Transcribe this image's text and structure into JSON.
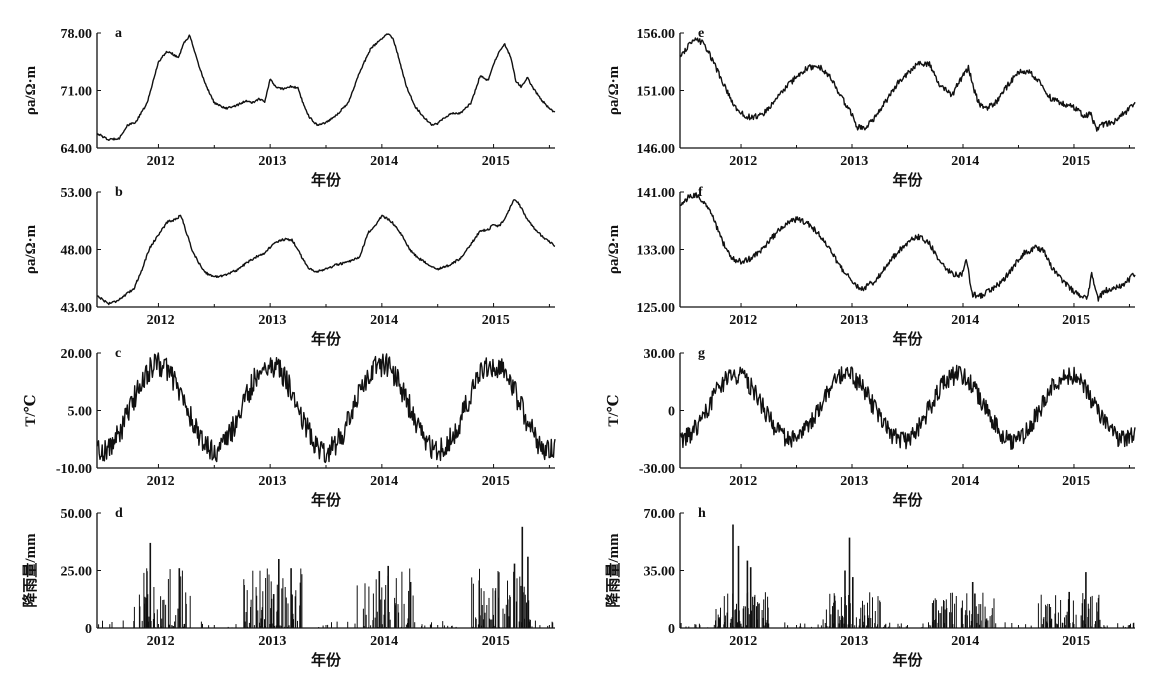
{
  "chart_data": [
    {
      "id": "a",
      "panel_label": "a",
      "type": "line",
      "ylabel": "ρa/Ω·m",
      "xlabel": "年份",
      "ylim": [
        64.0,
        78.0
      ],
      "yticks": [
        "64.00",
        "71.00",
        "78.00"
      ],
      "xticks": [
        "2012",
        "2013",
        "2014",
        "2015"
      ],
      "xlim": [
        2011.45,
        2015.55
      ],
      "noise": 0.12,
      "series": [
        {
          "name": "a",
          "x": [
            2011.45,
            2011.55,
            2011.65,
            2011.72,
            2011.8,
            2011.9,
            2012.0,
            2012.08,
            2012.12,
            2012.18,
            2012.22,
            2012.28,
            2012.35,
            2012.42,
            2012.5,
            2012.6,
            2012.7,
            2012.78,
            2012.85,
            2012.9,
            2012.95,
            2013.0,
            2013.05,
            2013.12,
            2013.18,
            2013.25,
            2013.3,
            2013.35,
            2013.42,
            2013.5,
            2013.6,
            2013.7,
            2013.8,
            2013.9,
            2014.0,
            2014.05,
            2014.1,
            2014.15,
            2014.22,
            2014.3,
            2014.38,
            2014.45,
            2014.5,
            2014.55,
            2014.62,
            2014.7,
            2014.8,
            2014.88,
            2014.95,
            2015.0,
            2015.05,
            2015.1,
            2015.15,
            2015.2,
            2015.25,
            2015.3,
            2015.35,
            2015.42,
            2015.5,
            2015.55
          ],
          "y": [
            65.8,
            65.0,
            65.2,
            66.7,
            67.2,
            69.5,
            74.5,
            75.8,
            75.5,
            75.0,
            76.6,
            77.7,
            74.5,
            71.8,
            69.5,
            68.8,
            69.2,
            69.7,
            69.5,
            70.0,
            69.6,
            72.4,
            71.4,
            71.2,
            71.5,
            71.3,
            69.2,
            67.8,
            66.8,
            67.1,
            68.1,
            69.5,
            73.2,
            76.1,
            77.3,
            77.9,
            77.4,
            75.0,
            71.5,
            69.0,
            67.7,
            66.8,
            67.0,
            67.6,
            68.2,
            68.2,
            69.5,
            72.8,
            72.2,
            74.2,
            75.7,
            76.6,
            75.2,
            72.2,
            71.4,
            72.6,
            71.4,
            70.0,
            68.8,
            68.3
          ]
        }
      ]
    },
    {
      "id": "b",
      "panel_label": "b",
      "type": "line",
      "ylabel": "ρa/Ω·m",
      "xlabel": "年份",
      "ylim": [
        43.0,
        53.0
      ],
      "yticks": [
        "43.00",
        "48.00",
        "53.00"
      ],
      "xticks": [
        "2012",
        "2013",
        "2014",
        "2015"
      ],
      "xlim": [
        2011.45,
        2015.55
      ],
      "noise": 0.1,
      "series": [
        {
          "name": "b",
          "x": [
            2011.45,
            2011.55,
            2011.62,
            2011.7,
            2011.78,
            2011.85,
            2011.92,
            2012.0,
            2012.08,
            2012.15,
            2012.2,
            2012.25,
            2012.3,
            2012.35,
            2012.42,
            2012.5,
            2012.6,
            2012.7,
            2012.8,
            2012.9,
            2012.95,
            2013.0,
            2013.05,
            2013.1,
            2013.15,
            2013.2,
            2013.28,
            2013.35,
            2013.42,
            2013.5,
            2013.6,
            2013.7,
            2013.8,
            2013.88,
            2013.95,
            2014.0,
            2014.05,
            2014.1,
            2014.18,
            2014.25,
            2014.32,
            2014.4,
            2014.5,
            2014.6,
            2014.7,
            2014.8,
            2014.88,
            2014.95,
            2015.0,
            2015.05,
            2015.12,
            2015.18,
            2015.22,
            2015.28,
            2015.35,
            2015.45,
            2015.55
          ],
          "y": [
            44.0,
            43.3,
            43.5,
            44.0,
            44.6,
            46.2,
            48.1,
            49.3,
            50.4,
            50.6,
            51.0,
            49.5,
            48.0,
            47.0,
            46.0,
            45.6,
            45.8,
            46.2,
            46.9,
            47.5,
            47.7,
            48.2,
            48.6,
            48.8,
            48.9,
            48.8,
            47.4,
            46.3,
            46.1,
            46.3,
            46.7,
            46.9,
            47.3,
            49.5,
            50.2,
            50.9,
            50.7,
            50.3,
            49.2,
            48.0,
            47.3,
            46.8,
            46.3,
            46.6,
            47.2,
            48.5,
            49.6,
            49.7,
            50.2,
            50.0,
            51.0,
            52.4,
            52.1,
            51.0,
            50.0,
            49.0,
            48.3
          ]
        }
      ]
    },
    {
      "id": "c",
      "panel_label": "c",
      "type": "line",
      "ylabel": "T/℃",
      "xlabel": "年份",
      "ylim": [
        -10.0,
        20.0
      ],
      "yticks": [
        "-10.00",
        "5.00",
        "20.00"
      ],
      "xticks": [
        "2012",
        "2013",
        "2014",
        "2015"
      ],
      "xlim": [
        2011.45,
        2015.55
      ],
      "noise": 3.2,
      "seasonal": {
        "mean": 5.8,
        "amp": 11.2,
        "peak": 2012.0,
        "period": 1.0
      },
      "series": [
        {
          "name": "c",
          "x": [],
          "y": []
        }
      ]
    },
    {
      "id": "d",
      "panel_label": "d",
      "type": "bar",
      "ylabel": "降雨量/mm",
      "xlabel": "年份",
      "ylim": [
        0,
        50.0
      ],
      "yticks": [
        "0",
        "25.00",
        "50.00"
      ],
      "xticks": [
        "2012",
        "2013",
        "2014",
        "2015"
      ],
      "xlim": [
        2011.45,
        2015.55
      ],
      "rain": {
        "seasons": [
          [
            2011.78,
            2012.28
          ],
          [
            2012.75,
            2013.28
          ],
          [
            2013.75,
            2014.28
          ],
          [
            2014.8,
            2015.32
          ]
        ],
        "peaks": [
          [
            2011.92,
            37
          ],
          [
            2012.18,
            26
          ],
          [
            2013.07,
            30
          ],
          [
            2013.18,
            26
          ],
          [
            2014.05,
            27
          ],
          [
            2014.25,
            20
          ],
          [
            2015.25,
            44
          ],
          [
            2015.18,
            28
          ],
          [
            2015.3,
            31
          ]
        ],
        "typical": 10,
        "scale": 26
      },
      "series": [
        {
          "name": "rain",
          "x": [],
          "y": []
        }
      ]
    },
    {
      "id": "e",
      "panel_label": "e",
      "type": "line",
      "ylabel": "ρa/Ω·m",
      "xlabel": "年份",
      "ylim": [
        146.0,
        156.0
      ],
      "yticks": [
        "146.00",
        "151.00",
        "156.00"
      ],
      "xticks": [
        "2012",
        "2013",
        "2014",
        "2015"
      ],
      "xlim": [
        2011.45,
        2015.55
      ],
      "noise": 0.25,
      "series": [
        {
          "name": "e",
          "x": [
            2011.45,
            2011.52,
            2011.6,
            2011.67,
            2011.75,
            2011.82,
            2011.9,
            2011.95,
            2012.0,
            2012.1,
            2012.2,
            2012.3,
            2012.4,
            2012.5,
            2012.6,
            2012.7,
            2012.8,
            2012.9,
            2013.0,
            2013.05,
            2013.12,
            2013.2,
            2013.3,
            2013.4,
            2013.5,
            2013.6,
            2013.7,
            2013.78,
            2013.85,
            2013.9,
            2013.95,
            2014.0,
            2014.05,
            2014.1,
            2014.15,
            2014.2,
            2014.3,
            2014.4,
            2014.5,
            2014.6,
            2014.7,
            2014.8,
            2014.9,
            2015.0,
            2015.1,
            2015.15,
            2015.2,
            2015.25,
            2015.35,
            2015.45,
            2015.55
          ],
          "y": [
            154.0,
            154.8,
            155.5,
            155.0,
            153.5,
            152.0,
            150.4,
            149.5,
            149.0,
            148.6,
            149.0,
            150.0,
            151.2,
            152.2,
            153.0,
            153.1,
            152.2,
            150.5,
            148.9,
            147.8,
            147.8,
            148.6,
            150.0,
            151.5,
            152.5,
            153.4,
            153.3,
            151.6,
            151.0,
            150.5,
            151.5,
            152.3,
            153.0,
            151.0,
            149.8,
            149.4,
            150.0,
            151.4,
            152.6,
            152.6,
            151.6,
            150.2,
            149.9,
            149.5,
            148.8,
            149.0,
            147.6,
            148.0,
            148.2,
            149.0,
            149.8
          ]
        }
      ]
    },
    {
      "id": "f",
      "panel_label": "f",
      "type": "line",
      "ylabel": "ρa/Ω·m",
      "xlabel": "年份",
      "ylim": [
        125.0,
        141.0
      ],
      "yticks": [
        "125.00",
        "133.00",
        "141.00"
      ],
      "xticks": [
        "2012",
        "2013",
        "2014",
        "2015"
      ],
      "xlim": [
        2011.45,
        2015.55
      ],
      "noise": 0.4,
      "series": [
        {
          "name": "f",
          "x": [
            2011.45,
            2011.52,
            2011.6,
            2011.67,
            2011.75,
            2011.82,
            2011.9,
            2011.95,
            2012.0,
            2012.1,
            2012.2,
            2012.3,
            2012.4,
            2012.5,
            2012.6,
            2012.7,
            2012.8,
            2012.9,
            2013.0,
            2013.05,
            2013.1,
            2013.2,
            2013.3,
            2013.4,
            2013.5,
            2013.6,
            2013.7,
            2013.8,
            2013.88,
            2013.93,
            2013.97,
            2014.0,
            2014.03,
            2014.08,
            2014.15,
            2014.25,
            2014.35,
            2014.45,
            2014.55,
            2014.65,
            2014.72,
            2014.8,
            2014.9,
            2015.0,
            2015.08,
            2015.12,
            2015.16,
            2015.22,
            2015.28,
            2015.35,
            2015.45,
            2015.55
          ],
          "y": [
            139.0,
            140.2,
            140.5,
            139.6,
            137.5,
            134.5,
            132.0,
            131.5,
            131.3,
            131.8,
            133.2,
            135.0,
            136.5,
            137.2,
            136.6,
            135.2,
            133.0,
            130.5,
            128.5,
            127.8,
            127.6,
            128.5,
            130.5,
            132.5,
            134.0,
            134.8,
            133.8,
            131.0,
            130.0,
            129.5,
            129.4,
            129.8,
            132.0,
            126.8,
            126.5,
            127.3,
            128.5,
            130.5,
            132.5,
            133.2,
            133.0,
            130.5,
            128.5,
            127.2,
            126.4,
            126.5,
            129.5,
            126.2,
            127.3,
            127.5,
            128.2,
            129.6
          ]
        }
      ]
    },
    {
      "id": "g",
      "panel_label": "g",
      "type": "line",
      "ylabel": "T/℃",
      "xlabel": "年份",
      "ylim": [
        -30.0,
        30.0
      ],
      "yticks": [
        "-30.00",
        "0",
        "30.00"
      ],
      "xticks": [
        "2012",
        "2013",
        "2014",
        "2015"
      ],
      "xlim": [
        2011.45,
        2015.55
      ],
      "noise": 5.0,
      "seasonal": {
        "mean": 1.5,
        "amp": 17.0,
        "peak": 2011.95,
        "period": 1.0
      },
      "series": [
        {
          "name": "g",
          "x": [],
          "y": []
        }
      ]
    },
    {
      "id": "h",
      "panel_label": "h",
      "type": "bar",
      "ylabel": "降雨量/mm",
      "xlabel": "年份",
      "ylim": [
        0,
        70.0
      ],
      "yticks": [
        "0",
        "35.00",
        "70.00"
      ],
      "xticks": [
        "2012",
        "2013",
        "2014",
        "2015"
      ],
      "xlim": [
        2011.45,
        2015.55
      ],
      "rain": {
        "seasons": [
          [
            2011.75,
            2012.25
          ],
          [
            2012.72,
            2013.25
          ],
          [
            2013.72,
            2014.28
          ],
          [
            2014.65,
            2015.25
          ]
        ],
        "peaks": [
          [
            2011.92,
            63
          ],
          [
            2011.97,
            50
          ],
          [
            2012.05,
            41
          ],
          [
            2012.08,
            37
          ],
          [
            2012.97,
            55
          ],
          [
            2012.93,
            35
          ],
          [
            2013.0,
            31
          ],
          [
            2014.08,
            28
          ],
          [
            2014.1,
            21
          ],
          [
            2015.1,
            34
          ],
          [
            2014.95,
            22
          ]
        ],
        "typical": 8,
        "scale": 22
      },
      "series": [
        {
          "name": "rain",
          "x": [],
          "y": []
        }
      ]
    }
  ]
}
